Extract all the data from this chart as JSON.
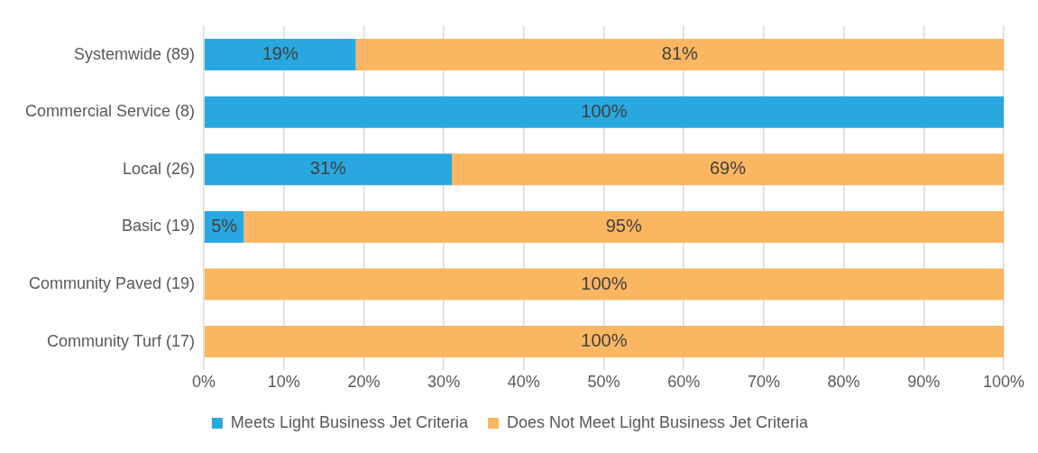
{
  "chart_data": {
    "type": "bar",
    "orientation": "horizontal",
    "stacked": true,
    "categories": [
      "Systemwide (89)",
      "Commercial Service (8)",
      "Local (26)",
      "Basic (19)",
      "Community Paved (19)",
      "Community Turf (17)"
    ],
    "series": [
      {
        "name": "Meets Light Business Jet Criteria",
        "color": "#29a8e0",
        "values": [
          19,
          100,
          31,
          5,
          0,
          0
        ],
        "value_labels": [
          "19%",
          "100%",
          "31%",
          "5%",
          null,
          null
        ]
      },
      {
        "name": "Does Not Meet Light Business Jet Criteria",
        "color": "#fbb661",
        "values": [
          81,
          0,
          69,
          95,
          100,
          100
        ],
        "value_labels": [
          "81%",
          null,
          "69%",
          "95%",
          "100%",
          "100%"
        ]
      }
    ],
    "xlim": [
      0,
      100
    ],
    "xticks": [
      {
        "value": 0,
        "label": "0%"
      },
      {
        "value": 10,
        "label": "10%"
      },
      {
        "value": 20,
        "label": "20%"
      },
      {
        "value": 30,
        "label": "30%"
      },
      {
        "value": 40,
        "label": "40%"
      },
      {
        "value": 50,
        "label": "50%"
      },
      {
        "value": 60,
        "label": "60%"
      },
      {
        "value": 70,
        "label": "70%"
      },
      {
        "value": 80,
        "label": "80%"
      },
      {
        "value": 90,
        "label": "90%"
      },
      {
        "value": 100,
        "label": "100%"
      }
    ],
    "grid": "x",
    "legend": "bottom"
  }
}
